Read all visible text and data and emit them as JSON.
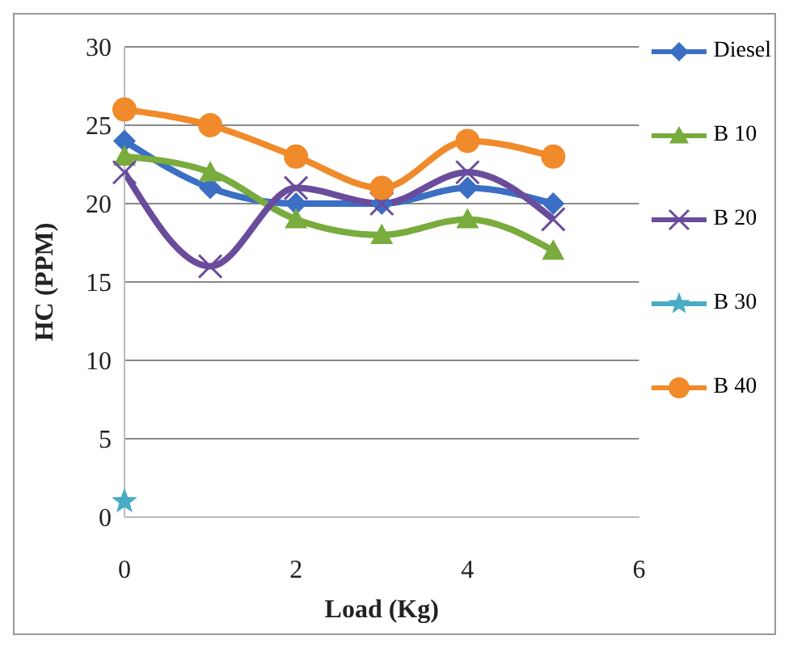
{
  "chart_data": {
    "type": "line",
    "xlabel": "Load (Kg)",
    "ylabel": "HC  (PPM)",
    "x": [
      0,
      1,
      2,
      3,
      4,
      5
    ],
    "xlim": [
      0,
      6
    ],
    "xticks": [
      0,
      2,
      4,
      6
    ],
    "ylim": [
      0,
      30
    ],
    "yticks": [
      0,
      5,
      10,
      15,
      20,
      25,
      30
    ],
    "grid": "y",
    "legend": "right",
    "series": [
      {
        "name": "Diesel",
        "color": "#3a6fc4",
        "marker": "diamond",
        "values": [
          24,
          21,
          20,
          20,
          21,
          20
        ]
      },
      {
        "name": "B 10",
        "color": "#79ab3d",
        "marker": "triangle",
        "values": [
          23,
          22,
          19,
          18,
          19,
          17
        ]
      },
      {
        "name": "B 20",
        "color": "#6a4c9c",
        "marker": "cross",
        "values": [
          22,
          16,
          21,
          20,
          22,
          19
        ]
      },
      {
        "name": "B 30",
        "color": "#4aacc6",
        "marker": "star",
        "values": [
          1,
          null,
          null,
          null,
          null,
          null
        ]
      },
      {
        "name": "B 40",
        "color": "#f08a2a",
        "marker": "circle",
        "values": [
          26,
          25,
          23,
          21,
          24,
          23
        ]
      }
    ]
  }
}
